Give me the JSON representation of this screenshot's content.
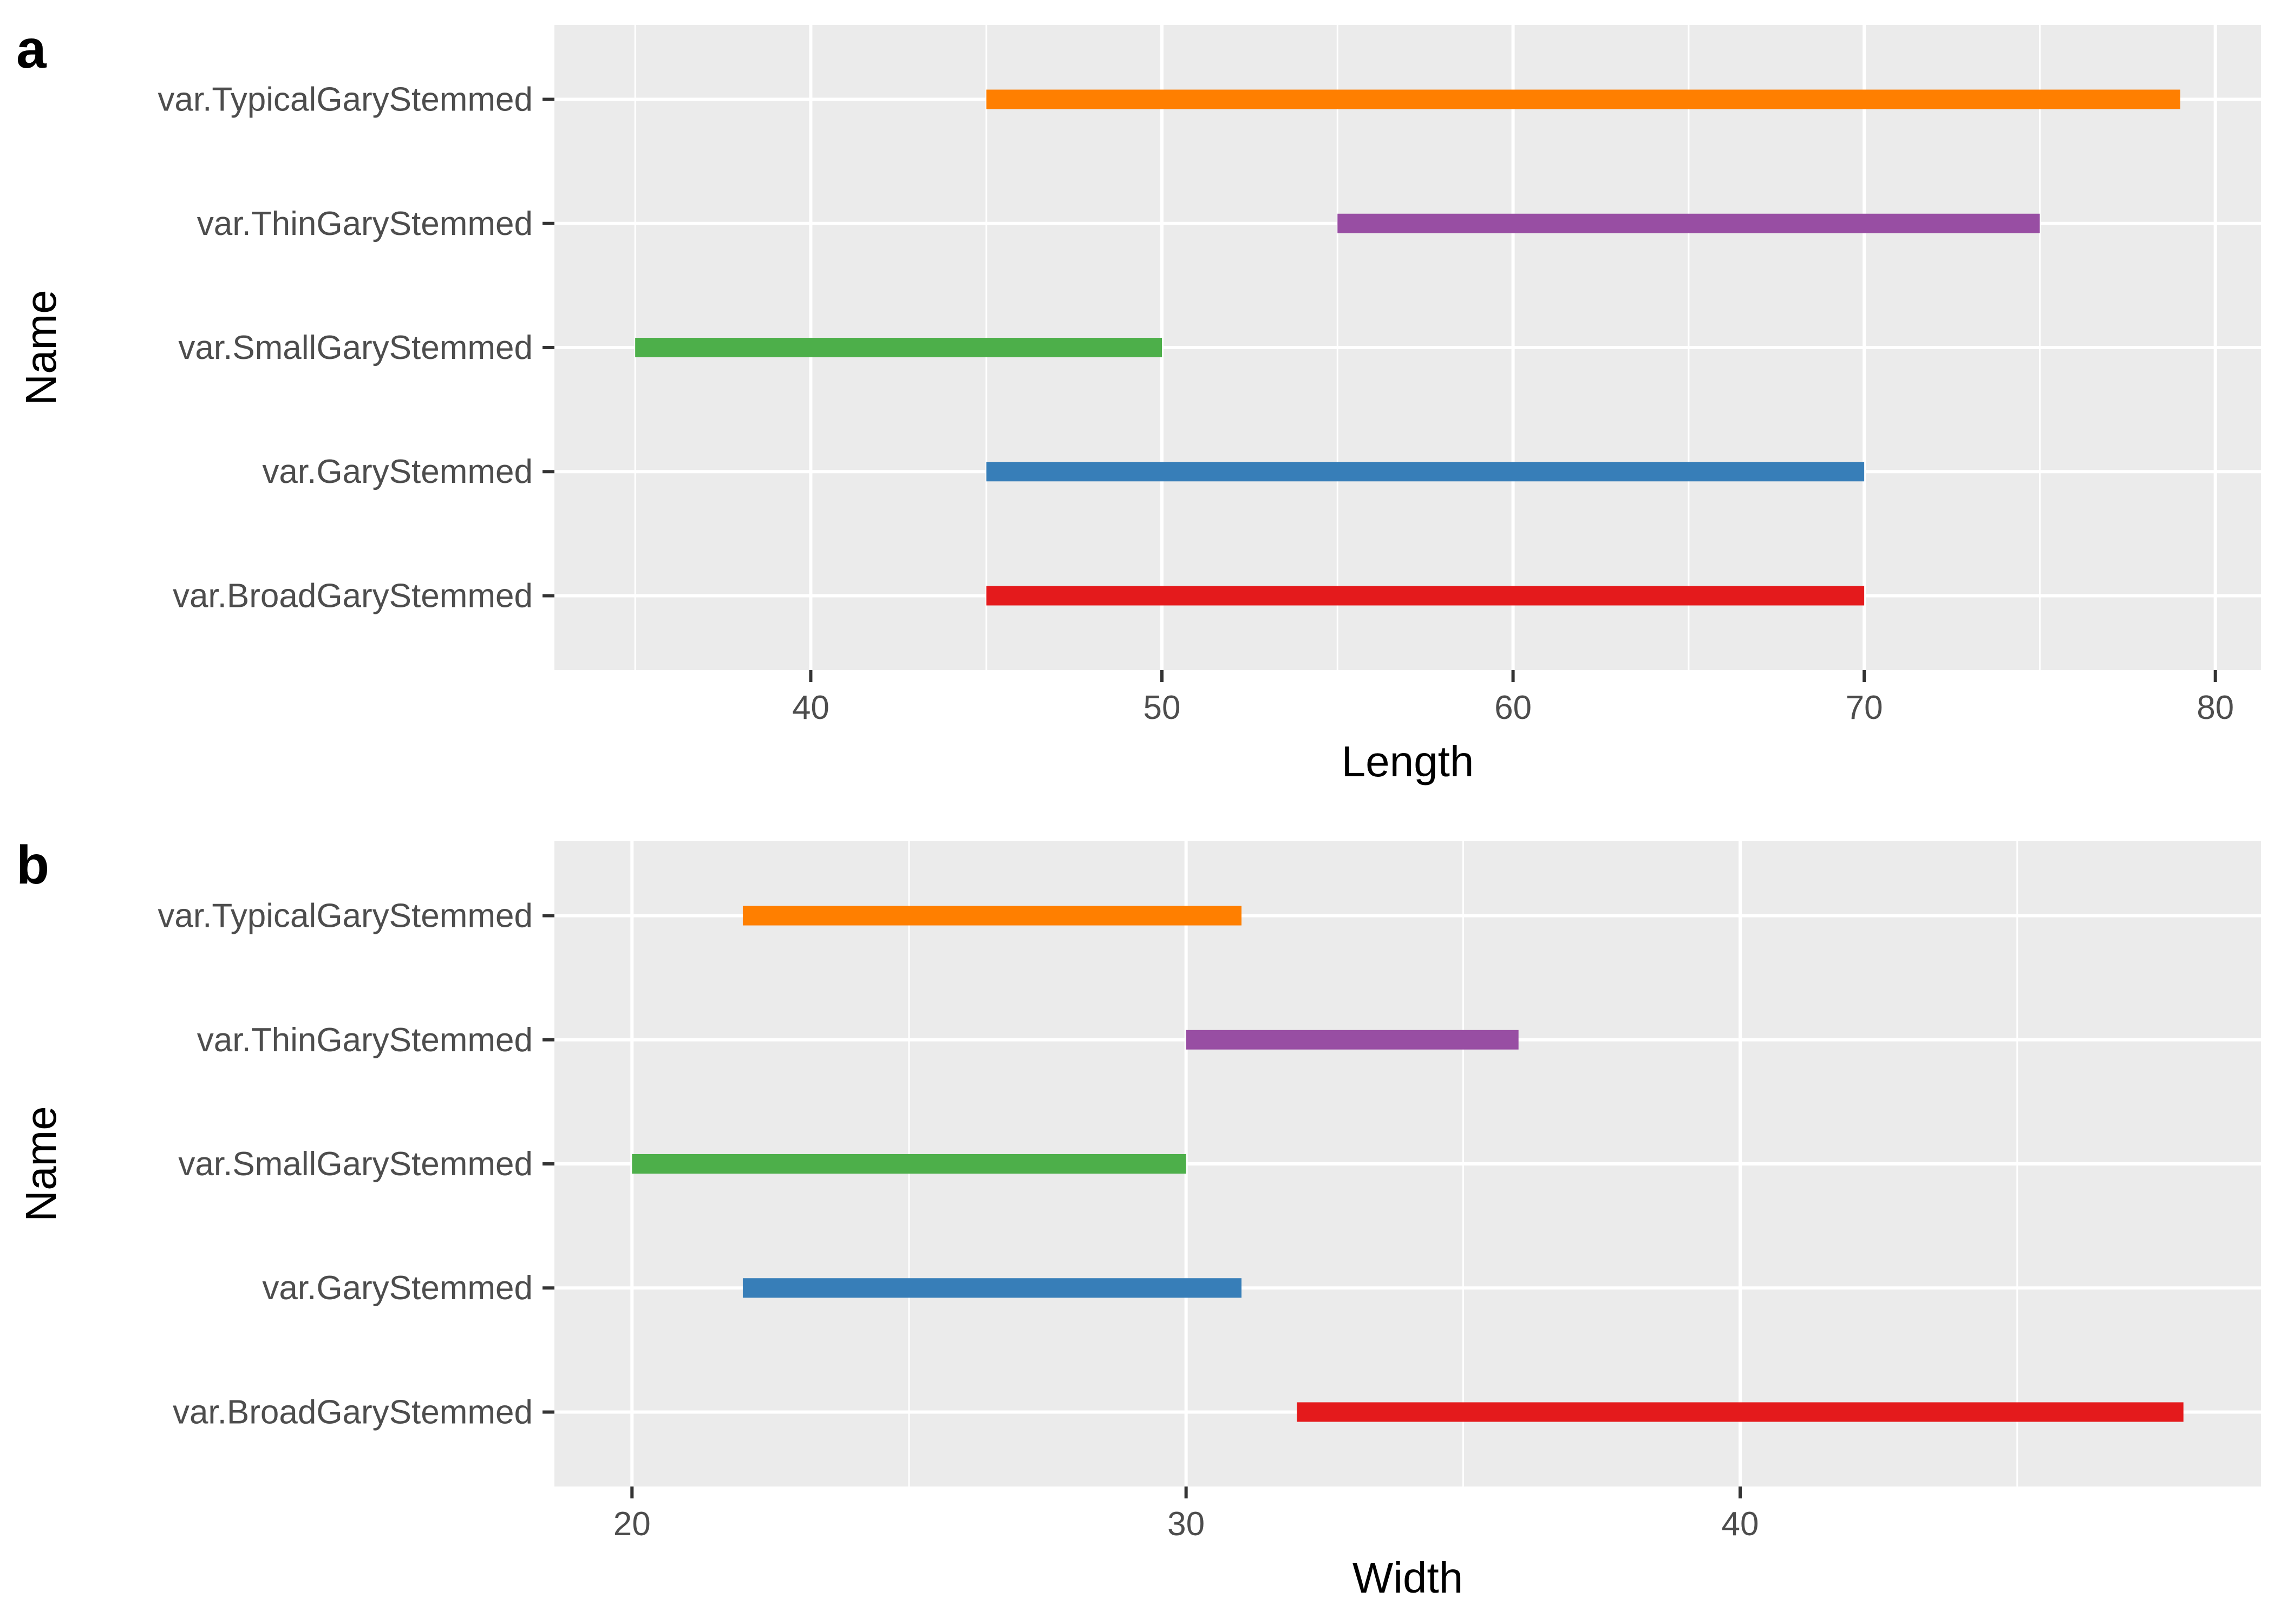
{
  "chart_data": [
    {
      "type": "range_bar",
      "panel_tag": "a",
      "xlabel": "Length",
      "ylabel": "Name",
      "xlim": [
        32.7,
        81.3
      ],
      "xticks": [
        40,
        50,
        60,
        70,
        80
      ],
      "grid": true,
      "categories": [
        "var.TypicalGaryStemmed",
        "var.ThinGaryStemmed",
        "var.SmallGaryStemmed",
        "var.GaryStemmed",
        "var.BroadGaryStemmed"
      ],
      "ranges": [
        {
          "name": "var.TypicalGaryStemmed",
          "min": 45,
          "max": 79,
          "color": "#ff7f00"
        },
        {
          "name": "var.ThinGaryStemmed",
          "min": 55,
          "max": 75,
          "color": "#984ea3"
        },
        {
          "name": "var.SmallGaryStemmed",
          "min": 35,
          "max": 50,
          "color": "#4daf4a"
        },
        {
          "name": "var.GaryStemmed",
          "min": 45,
          "max": 70,
          "color": "#377eb8"
        },
        {
          "name": "var.BroadGaryStemmed",
          "min": 45,
          "max": 70,
          "color": "#e41a1c"
        }
      ]
    },
    {
      "type": "range_bar",
      "panel_tag": "b",
      "xlabel": "Width",
      "ylabel": "Name",
      "xlim": [
        18.6,
        49.4
      ],
      "xticks": [
        20,
        30,
        40
      ],
      "grid": true,
      "categories": [
        "var.TypicalGaryStemmed",
        "var.ThinGaryStemmed",
        "var.SmallGaryStemmed",
        "var.GaryStemmed",
        "var.BroadGaryStemmed"
      ],
      "ranges": [
        {
          "name": "var.TypicalGaryStemmed",
          "min": 22,
          "max": 31,
          "color": "#ff7f00"
        },
        {
          "name": "var.ThinGaryStemmed",
          "min": 30,
          "max": 36,
          "color": "#984ea3"
        },
        {
          "name": "var.SmallGaryStemmed",
          "min": 20,
          "max": 30,
          "color": "#4daf4a"
        },
        {
          "name": "var.GaryStemmed",
          "min": 22,
          "max": 31,
          "color": "#377eb8"
        },
        {
          "name": "var.BroadGaryStemmed",
          "min": 32,
          "max": 48,
          "color": "#e41a1c"
        }
      ]
    }
  ],
  "colors": {
    "panel_background": "#ebebeb",
    "grid": "#ffffff",
    "tick_text": "#4d4d4d",
    "tick_mark": "#333333"
  }
}
